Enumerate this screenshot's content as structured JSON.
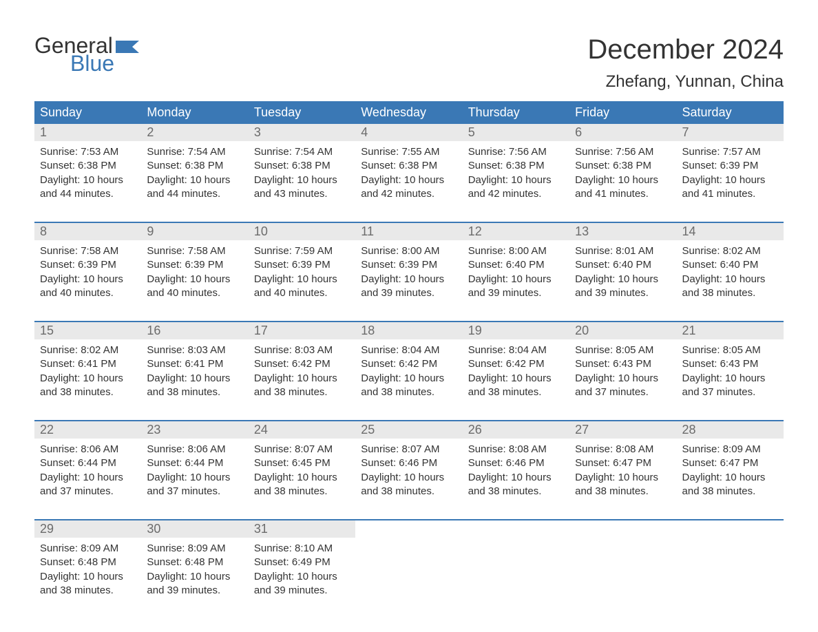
{
  "logo": {
    "word1": "General",
    "word2": "Blue"
  },
  "title": "December 2024",
  "location": "Zhefang, Yunnan, China",
  "colors": {
    "header_bg": "#3a78b5",
    "header_text": "#ffffff",
    "daynum_bg": "#e9e9e9",
    "daynum_text": "#6b6b6b",
    "body_text": "#333333",
    "row_border": "#3a78b5",
    "logo_accent": "#3a78b5",
    "page_bg": "#ffffff"
  },
  "typography": {
    "title_fontsize": 40,
    "location_fontsize": 24,
    "header_fontsize": 18,
    "daynum_fontsize": 18,
    "body_fontsize": 15,
    "font_family": "Arial"
  },
  "layout": {
    "columns": 7,
    "rows": 5,
    "cell_width_pct": 14.2857
  },
  "weekdays": [
    "Sunday",
    "Monday",
    "Tuesday",
    "Wednesday",
    "Thursday",
    "Friday",
    "Saturday"
  ],
  "labels": {
    "sunrise": "Sunrise",
    "sunset": "Sunset",
    "daylight": "Daylight"
  },
  "days": [
    {
      "n": "1",
      "sunrise": "7:53 AM",
      "sunset": "6:38 PM",
      "daylight": "10 hours and 44 minutes."
    },
    {
      "n": "2",
      "sunrise": "7:54 AM",
      "sunset": "6:38 PM",
      "daylight": "10 hours and 44 minutes."
    },
    {
      "n": "3",
      "sunrise": "7:54 AM",
      "sunset": "6:38 PM",
      "daylight": "10 hours and 43 minutes."
    },
    {
      "n": "4",
      "sunrise": "7:55 AM",
      "sunset": "6:38 PM",
      "daylight": "10 hours and 42 minutes."
    },
    {
      "n": "5",
      "sunrise": "7:56 AM",
      "sunset": "6:38 PM",
      "daylight": "10 hours and 42 minutes."
    },
    {
      "n": "6",
      "sunrise": "7:56 AM",
      "sunset": "6:38 PM",
      "daylight": "10 hours and 41 minutes."
    },
    {
      "n": "7",
      "sunrise": "7:57 AM",
      "sunset": "6:39 PM",
      "daylight": "10 hours and 41 minutes."
    },
    {
      "n": "8",
      "sunrise": "7:58 AM",
      "sunset": "6:39 PM",
      "daylight": "10 hours and 40 minutes."
    },
    {
      "n": "9",
      "sunrise": "7:58 AM",
      "sunset": "6:39 PM",
      "daylight": "10 hours and 40 minutes."
    },
    {
      "n": "10",
      "sunrise": "7:59 AM",
      "sunset": "6:39 PM",
      "daylight": "10 hours and 40 minutes."
    },
    {
      "n": "11",
      "sunrise": "8:00 AM",
      "sunset": "6:39 PM",
      "daylight": "10 hours and 39 minutes."
    },
    {
      "n": "12",
      "sunrise": "8:00 AM",
      "sunset": "6:40 PM",
      "daylight": "10 hours and 39 minutes."
    },
    {
      "n": "13",
      "sunrise": "8:01 AM",
      "sunset": "6:40 PM",
      "daylight": "10 hours and 39 minutes."
    },
    {
      "n": "14",
      "sunrise": "8:02 AM",
      "sunset": "6:40 PM",
      "daylight": "10 hours and 38 minutes."
    },
    {
      "n": "15",
      "sunrise": "8:02 AM",
      "sunset": "6:41 PM",
      "daylight": "10 hours and 38 minutes."
    },
    {
      "n": "16",
      "sunrise": "8:03 AM",
      "sunset": "6:41 PM",
      "daylight": "10 hours and 38 minutes."
    },
    {
      "n": "17",
      "sunrise": "8:03 AM",
      "sunset": "6:42 PM",
      "daylight": "10 hours and 38 minutes."
    },
    {
      "n": "18",
      "sunrise": "8:04 AM",
      "sunset": "6:42 PM",
      "daylight": "10 hours and 38 minutes."
    },
    {
      "n": "19",
      "sunrise": "8:04 AM",
      "sunset": "6:42 PM",
      "daylight": "10 hours and 38 minutes."
    },
    {
      "n": "20",
      "sunrise": "8:05 AM",
      "sunset": "6:43 PM",
      "daylight": "10 hours and 37 minutes."
    },
    {
      "n": "21",
      "sunrise": "8:05 AM",
      "sunset": "6:43 PM",
      "daylight": "10 hours and 37 minutes."
    },
    {
      "n": "22",
      "sunrise": "8:06 AM",
      "sunset": "6:44 PM",
      "daylight": "10 hours and 37 minutes."
    },
    {
      "n": "23",
      "sunrise": "8:06 AM",
      "sunset": "6:44 PM",
      "daylight": "10 hours and 37 minutes."
    },
    {
      "n": "24",
      "sunrise": "8:07 AM",
      "sunset": "6:45 PM",
      "daylight": "10 hours and 38 minutes."
    },
    {
      "n": "25",
      "sunrise": "8:07 AM",
      "sunset": "6:46 PM",
      "daylight": "10 hours and 38 minutes."
    },
    {
      "n": "26",
      "sunrise": "8:08 AM",
      "sunset": "6:46 PM",
      "daylight": "10 hours and 38 minutes."
    },
    {
      "n": "27",
      "sunrise": "8:08 AM",
      "sunset": "6:47 PM",
      "daylight": "10 hours and 38 minutes."
    },
    {
      "n": "28",
      "sunrise": "8:09 AM",
      "sunset": "6:47 PM",
      "daylight": "10 hours and 38 minutes."
    },
    {
      "n": "29",
      "sunrise": "8:09 AM",
      "sunset": "6:48 PM",
      "daylight": "10 hours and 38 minutes."
    },
    {
      "n": "30",
      "sunrise": "8:09 AM",
      "sunset": "6:48 PM",
      "daylight": "10 hours and 39 minutes."
    },
    {
      "n": "31",
      "sunrise": "8:10 AM",
      "sunset": "6:49 PM",
      "daylight": "10 hours and 39 minutes."
    }
  ]
}
